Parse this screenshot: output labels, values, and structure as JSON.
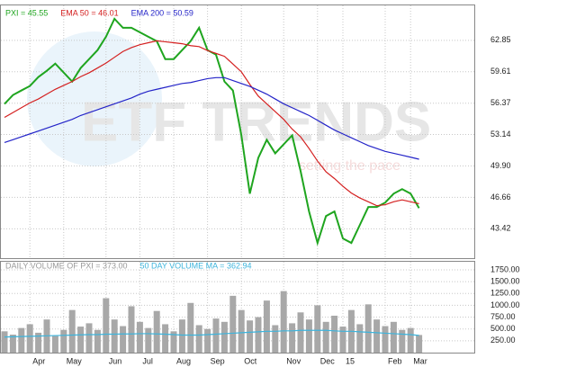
{
  "chart_data": [
    {
      "type": "line",
      "watermark": "ETF TRENDS",
      "watermark_tagline": "setting the pace",
      "categories": [
        null,
        null,
        null,
        "Apr",
        null,
        null,
        null,
        "May",
        null,
        null,
        null,
        null,
        "Jun",
        null,
        null,
        null,
        "Jul",
        null,
        null,
        null,
        "Aug",
        null,
        null,
        null,
        "Sep",
        null,
        null,
        null,
        "Oct",
        null,
        null,
        null,
        null,
        "Nov",
        null,
        null,
        null,
        "Dec",
        null,
        null,
        "15",
        null,
        null,
        null,
        null,
        "Feb",
        null,
        null,
        "Mar",
        null
      ],
      "series": [
        {
          "name": "PXI = 45.55",
          "color": "#1fa51f",
          "values": [
            56.29,
            57.21,
            57.68,
            58.14,
            59.06,
            59.71,
            60.45,
            59.52,
            58.6,
            59.99,
            60.91,
            61.84,
            63.22,
            65.07,
            64.14,
            64.14,
            63.68,
            63.22,
            62.76,
            60.91,
            60.91,
            61.84,
            62.76,
            64.14,
            61.84,
            61.37,
            58.6,
            57.68,
            53.05,
            47.04,
            50.74,
            52.59,
            51.2,
            52.13,
            53.05,
            49.36,
            45.2,
            41.96,
            44.73,
            45.2,
            42.42,
            41.96,
            43.81,
            45.66,
            45.66,
            46.12,
            47.04,
            47.51,
            47.04,
            45.55
          ]
        },
        {
          "name": "EMA 50 = 46.01",
          "color": "#d42020",
          "values": [
            54.9,
            55.4,
            55.9,
            56.4,
            56.8,
            57.3,
            57.8,
            58.2,
            58.6,
            59.1,
            59.5,
            60.0,
            60.5,
            61.1,
            61.7,
            62.1,
            62.4,
            62.6,
            62.8,
            62.7,
            62.6,
            62.5,
            62.3,
            62.2,
            61.8,
            61.5,
            61.2,
            60.4,
            59.6,
            58.3,
            57.1,
            56.3,
            55.5,
            54.7,
            53.7,
            52.9,
            51.7,
            50.4,
            49.3,
            48.6,
            47.8,
            47.1,
            46.6,
            46.2,
            45.8,
            45.9,
            46.2,
            46.4,
            46.2,
            46.01
          ]
        },
        {
          "name": "EMA 200 = 50.59",
          "color": "#2424c8",
          "values": [
            52.31,
            52.6,
            52.9,
            53.2,
            53.5,
            53.8,
            54.1,
            54.4,
            54.7,
            55.1,
            55.4,
            55.7,
            56.0,
            56.3,
            56.6,
            56.9,
            57.3,
            57.6,
            57.8,
            58.0,
            58.2,
            58.4,
            58.5,
            58.7,
            58.9,
            59.0,
            59.0,
            58.7,
            58.4,
            58.1,
            57.7,
            57.3,
            56.8,
            56.3,
            55.9,
            55.5,
            55.1,
            54.6,
            54.1,
            53.6,
            53.2,
            52.8,
            52.4,
            52.0,
            51.7,
            51.4,
            51.2,
            51.0,
            50.8,
            50.59
          ]
        }
      ],
      "ylim": [
        40.39,
        66.45
      ],
      "yticks": [
        43.42,
        46.66,
        {
          "value": 49.9,
          "label": "49.90"
        },
        53.14,
        56.37,
        59.61,
        62.85
      ],
      "grid": true
    },
    {
      "type": "bar",
      "series": [
        {
          "name": "DAILY VOLUME OF PXI = 373.00",
          "color": "#a8a8a8",
          "type": "bar",
          "values": [
            450,
            380,
            520,
            600,
            420,
            700,
            350,
            480,
            900,
            550,
            620,
            480,
            1150,
            700,
            560,
            980,
            650,
            520,
            880,
            600,
            450,
            700,
            1050,
            580,
            500,
            720,
            650,
            1200,
            900,
            680,
            750,
            1100,
            580,
            1300,
            620,
            850,
            700,
            1000,
            650,
            780,
            550,
            900,
            600,
            1020,
            700,
            560,
            650,
            480,
            520,
            373
          ]
        },
        {
          "name": "50 DAY VOLUME MA = 362.94",
          "color": "#3cb4dc",
          "type": "line",
          "values": [
            330,
            335,
            340,
            345,
            350,
            355,
            360,
            365,
            370,
            375,
            380,
            380,
            390,
            390,
            395,
            395,
            400,
            400,
            395,
            390,
            380,
            370,
            370,
            370,
            380,
            390,
            400,
            410,
            420,
            430,
            440,
            450,
            450,
            460,
            460,
            470,
            470,
            470,
            470,
            460,
            450,
            450,
            440,
            430,
            420,
            410,
            400,
            390,
            380,
            362.94
          ]
        }
      ],
      "ylim": [
        0,
        1920
      ],
      "yticks": [
        {
          "value": 250,
          "label": "250.00"
        },
        {
          "value": 500,
          "label": "500.00"
        },
        {
          "value": 750,
          "label": "750.00"
        },
        {
          "value": 1000,
          "label": "1000.00"
        },
        {
          "value": 1250,
          "label": "1250.00"
        },
        {
          "value": 1500,
          "label": "1500.00"
        },
        {
          "value": 1750,
          "label": "1750.00"
        }
      ],
      "grid": true
    }
  ]
}
